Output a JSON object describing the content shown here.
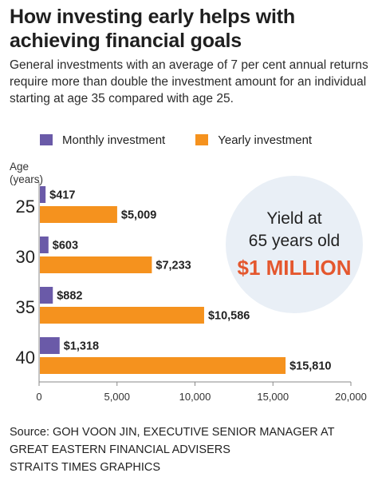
{
  "title": "How investing early helps with achieving financial goals",
  "subtitle": "General investments with an average of 7 per cent annual returns require more than double the investment amount for an individual starting at age 35 compared with age 25.",
  "legend": {
    "monthly": "Monthly investment",
    "yearly": "Yearly investment"
  },
  "colors": {
    "monthly": "#6a5aa8",
    "yearly": "#f5921e",
    "axis": "#888888",
    "circle": "#e9eff6",
    "highlight": "#e4572e"
  },
  "yield": {
    "line1": "Yield at",
    "line2": "65 years old",
    "amount": "$1 MILLION"
  },
  "source_lines": [
    "Source: GOH VOON JIN, EXECUTIVE SENIOR MANAGER AT",
    "GREAT EASTERN FINANCIAL ADVISERS",
    "STRAITS TIMES GRAPHICS"
  ],
  "chart_data": {
    "type": "bar",
    "orientation": "horizontal",
    "ylabel": "Age (years)",
    "categories": [
      "25",
      "30",
      "35",
      "40"
    ],
    "series": [
      {
        "name": "Monthly investment",
        "values": [
          417,
          603,
          882,
          1318
        ],
        "labels": [
          "$417",
          "$603",
          "$882",
          "$1,318"
        ]
      },
      {
        "name": "Yearly investment",
        "values": [
          5009,
          7233,
          10586,
          15810
        ],
        "labels": [
          "$5,009",
          "$7,233",
          "$10,586",
          "$15,810"
        ]
      }
    ],
    "xlim": [
      0,
      20000
    ],
    "xticks": [
      0,
      5000,
      10000,
      15000,
      20000
    ],
    "xtick_labels": [
      "0",
      "5,000",
      "10,000",
      "15,000",
      "20,000"
    ],
    "grid": false,
    "legend_position": "top-left"
  }
}
